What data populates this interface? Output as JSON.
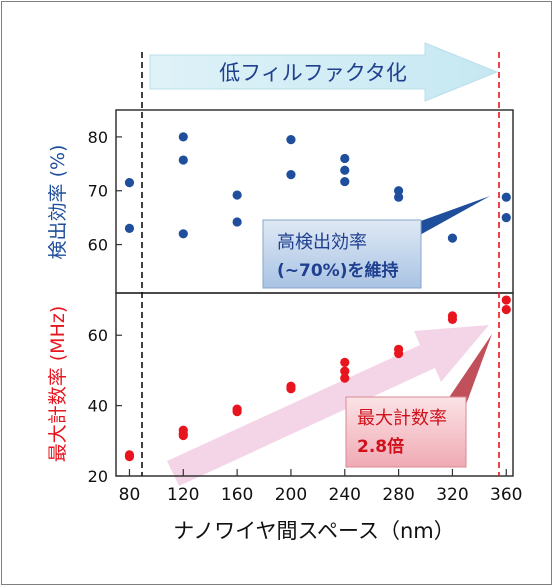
{
  "banner": {
    "text": "低フィルファクタ化"
  },
  "callouts": {
    "efficiency": {
      "line1": "高検出効率",
      "line2": "(~70%)を維持"
    },
    "countrate": {
      "line1": "最大計数率",
      "line2": "2.8倍"
    }
  },
  "colors": {
    "blue": "#1f4e9c",
    "red": "#e8141e",
    "banner": "#d7eef6",
    "efficiency_box": "#c7d9ee",
    "countrate_box": "#f5c6cc",
    "trend_arrow": "#f3d3e6"
  },
  "chart_data": [
    {
      "type": "scatter",
      "title": "",
      "xlabel": "",
      "ylabel": "検出効率 (%)",
      "xlim": [
        70,
        365
      ],
      "ylim": [
        51,
        85
      ],
      "yticks": [
        60,
        70,
        80
      ],
      "grid": false,
      "series": [
        {
          "points": [
            [
              80,
              71.5
            ],
            [
              80,
              63
            ],
            [
              120,
              80
            ],
            [
              120,
              75.7
            ],
            [
              120,
              62
            ],
            [
              160,
              69.2
            ],
            [
              160,
              64.2
            ],
            [
              200,
              79.5
            ],
            [
              200,
              73
            ],
            [
              240,
              76
            ],
            [
              240,
              73.8
            ],
            [
              240,
              71.7
            ],
            [
              280,
              70
            ],
            [
              280,
              68.8
            ],
            [
              280,
              61.6
            ],
            [
              320,
              61.2
            ],
            [
              360,
              68.8
            ],
            [
              360,
              65
            ]
          ]
        }
      ]
    },
    {
      "type": "scatter",
      "title": "",
      "xlabel": "ナノワイヤ間スペース（nm）",
      "ylabel": "最大計数率 (MHz)",
      "xlim": [
        70,
        365
      ],
      "ylim": [
        20,
        72
      ],
      "yticks": [
        20,
        40,
        60
      ],
      "xticks": [
        80,
        120,
        160,
        200,
        240,
        280,
        320,
        360
      ],
      "grid": false,
      "series": [
        {
          "points": [
            [
              80,
              26
            ],
            [
              80,
              25.5
            ],
            [
              120,
              33
            ],
            [
              120,
              32
            ],
            [
              120,
              31.5
            ],
            [
              160,
              39
            ],
            [
              160,
              38.3
            ],
            [
              200,
              45.5
            ],
            [
              200,
              44.8
            ],
            [
              240,
              52.3
            ],
            [
              240,
              49.8
            ],
            [
              240,
              47.8
            ],
            [
              280,
              56
            ],
            [
              280,
              54.8
            ],
            [
              320,
              65.5
            ],
            [
              320,
              64.5
            ],
            [
              360,
              70
            ],
            [
              360,
              67.3
            ]
          ]
        }
      ]
    }
  ]
}
